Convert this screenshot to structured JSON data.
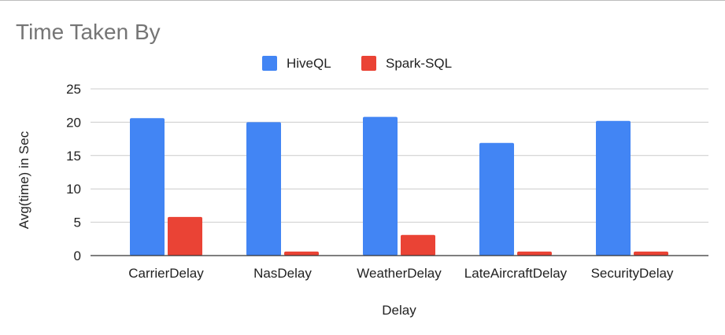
{
  "chart_data": {
    "type": "bar",
    "title": "Time Taken By",
    "xlabel": "Delay",
    "ylabel": "Avg(time) in Sec",
    "categories": [
      "CarrierDelay",
      "NasDelay",
      "WeatherDelay",
      "LateAircraftDelay",
      "SecurityDelay"
    ],
    "series": [
      {
        "name": "HiveQL",
        "color": "#4285f4",
        "values": [
          20.6,
          20.0,
          20.8,
          16.9,
          20.2
        ]
      },
      {
        "name": "Spark-SQL",
        "color": "#ea4335",
        "values": [
          5.8,
          0.6,
          3.1,
          0.6,
          0.6
        ]
      }
    ],
    "ylim": [
      0,
      25
    ],
    "yticks": [
      0,
      5,
      10,
      15,
      20,
      25
    ],
    "grid": true,
    "legend_position": "top"
  }
}
